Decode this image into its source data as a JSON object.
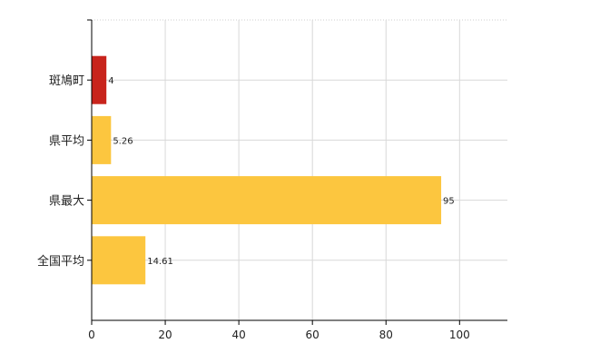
{
  "chart_data": {
    "type": "bar",
    "orientation": "horizontal",
    "categories": [
      "斑鳩町",
      "県平均",
      "県最大",
      "全国平均"
    ],
    "values": [
      4,
      5.26,
      95,
      14.61
    ],
    "value_labels": [
      "4",
      "5.26",
      "95",
      "14.61"
    ],
    "colors": [
      "#c8241c",
      "#fcc63f",
      "#fcc63f",
      "#fcc63f"
    ],
    "xlim": [
      0,
      113
    ],
    "xticks": [
      0,
      20,
      40,
      60,
      80,
      100
    ],
    "xtick_labels": [
      "0",
      "20",
      "40",
      "60",
      "80",
      "100"
    ],
    "grid": true,
    "title": "",
    "xlabel": "",
    "ylabel": ""
  }
}
